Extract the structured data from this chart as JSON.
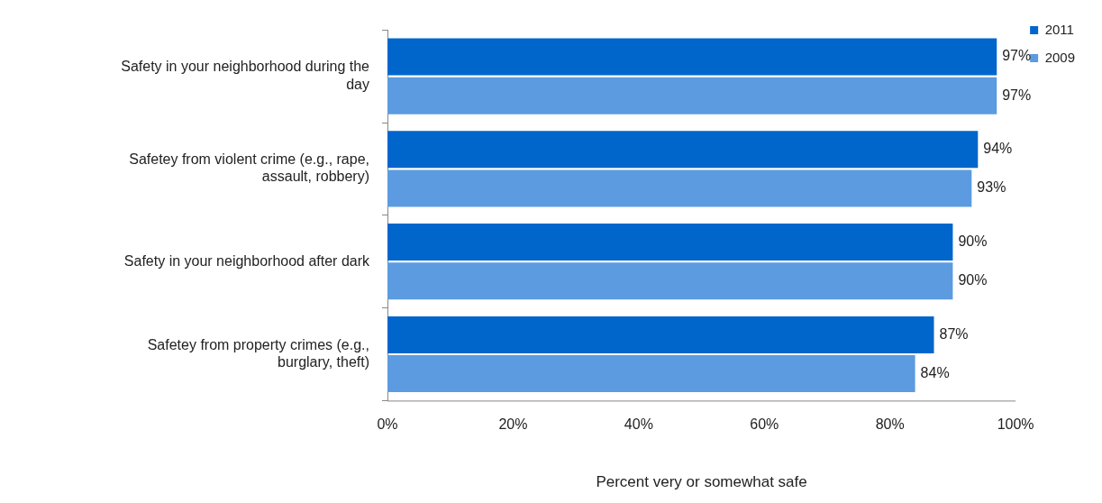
{
  "chart_data": {
    "type": "bar",
    "orientation": "horizontal",
    "xlabel": "Percent very or somewhat safe",
    "categories": [
      "Safety in your neighborhood during the day",
      "Safetey from violent crime (e.g., rape, assault, robbery)",
      "Safety in your neighborhood after dark",
      "Safetey from property crimes (e.g., burglary, theft)"
    ],
    "series": [
      {
        "name": "2011",
        "color": "#0066cc",
        "values": [
          97,
          94,
          90,
          87
        ],
        "value_labels": [
          "97%",
          "94%",
          "90%",
          "87%"
        ]
      },
      {
        "name": "2009",
        "color": "#5c9be0",
        "values": [
          97,
          93,
          90,
          84
        ],
        "value_labels": [
          "97%",
          "93%",
          "90%",
          "84%"
        ]
      }
    ],
    "xlim": [
      0,
      100
    ],
    "xticks": [
      {
        "value": 0,
        "label": "0%"
      },
      {
        "value": 20,
        "label": "20%"
      },
      {
        "value": 40,
        "label": "40%"
      },
      {
        "value": 60,
        "label": "60%"
      },
      {
        "value": 80,
        "label": "80%"
      },
      {
        "value": 100,
        "label": "100%"
      }
    ],
    "grid": false,
    "legend": "top right"
  }
}
